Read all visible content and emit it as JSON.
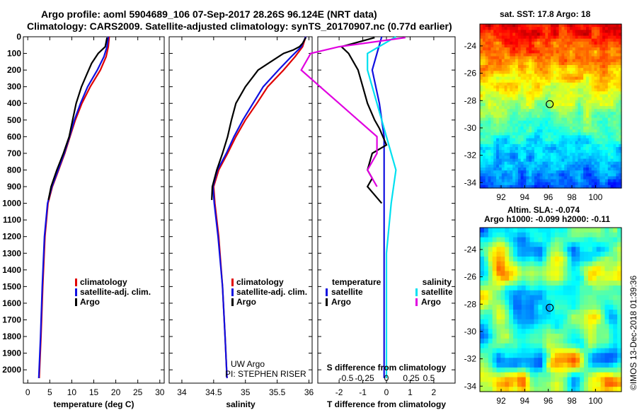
{
  "header": {
    "line1": "Argo profile: aoml 5904689_106 07-Sep-2017 28.26S 96.124E (NRT data)",
    "line2": "Climatology: CARS2009. Satellite-adjusted climatology: synTS_20170907.nc (0.77d earlier)"
  },
  "colors": {
    "climatology": "#e00000",
    "satellite_adj": "#1010e0",
    "argo": "#000000",
    "satellite_salinity": "#00e0f0",
    "argo_salinity_diff": "#e000e0"
  },
  "chart_data": [
    {
      "type": "line",
      "id": "temperature",
      "xlabel": "temperature (deg C)",
      "xlim": [
        -1,
        31
      ],
      "xticks": [
        0,
        5,
        10,
        15,
        20,
        25,
        30
      ],
      "ylim": [
        2080,
        0
      ],
      "yticks": [
        0,
        100,
        200,
        300,
        400,
        500,
        600,
        700,
        800,
        900,
        1000,
        1100,
        1200,
        1300,
        1400,
        1500,
        1600,
        1700,
        1800,
        1900,
        2000
      ],
      "legend": [
        "climatology",
        "satellite-adj. clim.",
        "Argo"
      ],
      "series": [
        {
          "name": "climatology",
          "color": "#e00000",
          "depth": [
            0,
            60,
            120,
            200,
            300,
            400,
            500,
            600,
            700,
            800,
            900,
            1000,
            1200,
            1500,
            1800,
            2050
          ],
          "values": [
            18.5,
            18.3,
            17.8,
            16.5,
            14.2,
            12.3,
            10.8,
            9.6,
            8.4,
            7.0,
            5.6,
            4.6,
            3.9,
            3.4,
            3.0,
            2.6
          ]
        },
        {
          "name": "satellite-adj. clim.",
          "color": "#1010e0",
          "depth": [
            0,
            60,
            120,
            200,
            300,
            400,
            500,
            600,
            700,
            800,
            900,
            1000,
            1200,
            1500,
            1800,
            2050
          ],
          "values": [
            18.3,
            18.0,
            17.3,
            15.8,
            13.6,
            12.0,
            10.6,
            9.5,
            8.3,
            6.9,
            5.5,
            4.5,
            3.8,
            3.3,
            2.9,
            2.5
          ]
        },
        {
          "name": "Argo",
          "color": "#000000",
          "depth": [
            5,
            60,
            100,
            160,
            220,
            300,
            400,
            500,
            600,
            700,
            800,
            900,
            980
          ],
          "values": [
            18.0,
            17.6,
            16.0,
            14.5,
            13.5,
            12.2,
            11.0,
            10.2,
            9.4,
            8.1,
            6.6,
            5.3,
            4.7
          ]
        }
      ]
    },
    {
      "type": "line",
      "id": "salinity",
      "xlabel": "salinity",
      "xlim": [
        33.8,
        36.05
      ],
      "xticks": [
        34,
        34.5,
        35,
        35.5,
        36
      ],
      "xticklabels": [
        "34",
        "34.5",
        "35",
        "35.5",
        "36"
      ],
      "ylim": [
        2080,
        0
      ],
      "legend": [
        "climatology",
        "satellite-adj. clim.",
        "Argo"
      ],
      "annotations": [
        "UW Argo",
        "PI: STEPHEN RISER"
      ],
      "series": [
        {
          "name": "climatology",
          "color": "#e00000",
          "depth": [
            0,
            60,
            120,
            200,
            300,
            400,
            500,
            600,
            700,
            800,
            900,
            1000,
            1200,
            1500,
            1800,
            2050
          ],
          "values": [
            35.95,
            35.9,
            35.78,
            35.6,
            35.35,
            35.18,
            35.0,
            34.85,
            34.72,
            34.58,
            34.5,
            34.52,
            34.58,
            34.64,
            34.68,
            34.71
          ]
        },
        {
          "name": "satellite-adj. clim.",
          "color": "#1010e0",
          "depth": [
            0,
            60,
            120,
            200,
            300,
            400,
            500,
            600,
            700,
            800,
            900,
            1000,
            1200,
            1500,
            1800,
            2050
          ],
          "values": [
            35.95,
            35.88,
            35.72,
            35.52,
            35.28,
            35.12,
            34.96,
            34.82,
            34.7,
            34.56,
            34.49,
            34.51,
            34.57,
            34.64,
            34.68,
            34.71
          ]
        },
        {
          "name": "Argo",
          "color": "#000000",
          "depth": [
            5,
            40,
            60,
            80,
            100,
            150,
            200,
            300,
            400,
            500,
            600,
            700,
            800,
            900,
            980
          ],
          "values": [
            35.95,
            35.9,
            35.85,
            35.75,
            35.6,
            35.4,
            35.2,
            35.0,
            34.85,
            34.78,
            34.72,
            34.64,
            34.55,
            34.48,
            34.47
          ]
        }
      ]
    },
    {
      "type": "line",
      "id": "difference",
      "xlabel": "T difference from climatology",
      "xlabel_top": "S difference from climatology",
      "xlim": [
        -2.9,
        2.9
      ],
      "xticks": [
        -2,
        -1,
        0,
        1,
        2
      ],
      "xticks_s": [
        -0.5,
        -0.25,
        0,
        0.25,
        0.5
      ],
      "xticklabels_s": [
        "-0.5",
        "-0.25",
        "0",
        "0.25",
        "0.5"
      ],
      "ylim": [
        2080,
        0
      ],
      "legend_temperature_title": "temperature",
      "legend_salinity_title": "salinity",
      "legend": [
        "satellite",
        "Argo",
        "satellite",
        "Argo"
      ],
      "series": [
        {
          "name": "temperature satellite",
          "color": "#1010e0",
          "depth": [
            0,
            100,
            200,
            400,
            600,
            800,
            1000,
            1500,
            2050
          ],
          "values": [
            -0.2,
            -0.4,
            -0.6,
            -0.3,
            -0.1,
            -0.1,
            -0.1,
            -0.1,
            -0.1
          ]
        },
        {
          "name": "temperature Argo",
          "color": "#000000",
          "depth": [
            5,
            60,
            100,
            200,
            300,
            400,
            500,
            550,
            650,
            700,
            800,
            850,
            900,
            950,
            1000
          ],
          "values": [
            -0.5,
            -1.9,
            -1.6,
            -1.2,
            -1.0,
            -0.8,
            -0.5,
            -0.3,
            0.0,
            -0.6,
            -0.8,
            -0.6,
            -0.8,
            -0.5,
            -0.2
          ]
        },
        {
          "name": "salinity satellite",
          "color": "#00e0f0",
          "depth": [
            0,
            100,
            200,
            400,
            600,
            800,
            1000,
            1300,
            1500,
            2050
          ],
          "values": [
            0.1,
            -0.2,
            -0.2,
            -0.1,
            0.0,
            0.1,
            0.05,
            0.0,
            0.0,
            0.0
          ]
        },
        {
          "name": "salinity Argo",
          "color": "#e000e0",
          "depth": [
            5,
            60,
            100,
            200,
            300,
            400,
            500,
            600,
            700,
            800,
            900
          ],
          "values": [
            0.2,
            -0.5,
            -0.8,
            -0.9,
            -0.7,
            -0.5,
            -0.3,
            -0.1,
            -0.1,
            -0.2,
            -0.1
          ]
        }
      ]
    },
    {
      "type": "heatmap",
      "id": "sst_map",
      "title": "sat. SST: 17.8 Argo: 18",
      "xticks": [
        92,
        94,
        96,
        98,
        100
      ],
      "yticks": [
        -24,
        -26,
        -28,
        -30,
        -32,
        -34
      ],
      "xlim": [
        90.2,
        102.2
      ],
      "ylim": [
        -34.4,
        -22.4
      ],
      "marker": {
        "lon": 96.12,
        "lat": -28.26
      }
    },
    {
      "type": "heatmap",
      "id": "sla_map",
      "title": "Altim. SLA: -0.074",
      "subtitle": "Argo h1000: -0.099 h2000: -0.11",
      "xticks": [
        92,
        94,
        96,
        98,
        100
      ],
      "yticks": [
        -24,
        -26,
        -28,
        -30,
        -32,
        -34
      ],
      "xlim": [
        90.2,
        102.2
      ],
      "ylim": [
        -34.4,
        -22.4
      ],
      "marker": {
        "lon": 96.12,
        "lat": -28.26
      }
    }
  ],
  "credit": "©IMOS 13-Dec-2018 01:39:36"
}
